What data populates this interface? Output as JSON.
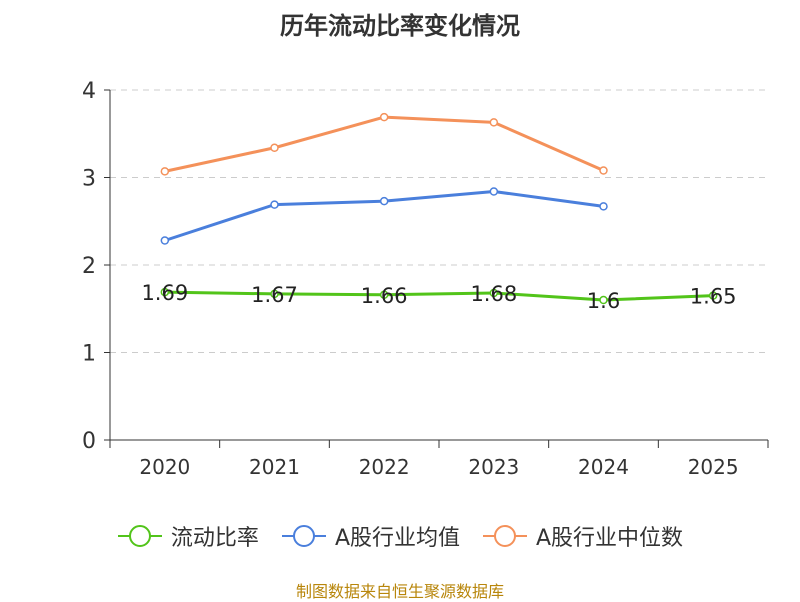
{
  "chart_data": {
    "type": "line",
    "title": "历年流动比率变化情况",
    "categories": [
      "2020",
      "2021",
      "2022",
      "2023",
      "2024",
      "2025"
    ],
    "ylim": [
      0,
      4
    ],
    "yticks": [
      "0",
      "1",
      "2",
      "3",
      "4"
    ],
    "grid": true,
    "legend_position": "bottom",
    "series": [
      {
        "name": "流动比率",
        "color": "#52c41a",
        "values": [
          1.69,
          1.67,
          1.66,
          1.68,
          1.6,
          1.65
        ],
        "labels": [
          "1.69",
          "1.67",
          "1.66",
          "1.68",
          "1.6",
          "1.65"
        ],
        "show_labels": true
      },
      {
        "name": "A股行业均值",
        "color": "#4a7fdc",
        "values": [
          2.28,
          2.69,
          2.73,
          2.84,
          2.67,
          null
        ],
        "show_labels": false
      },
      {
        "name": "A股行业中位数",
        "color": "#f4915a",
        "values": [
          3.07,
          3.34,
          3.69,
          3.63,
          3.08,
          null
        ],
        "show_labels": false
      }
    ],
    "source": "制图数据来自恒生聚源数据库"
  }
}
